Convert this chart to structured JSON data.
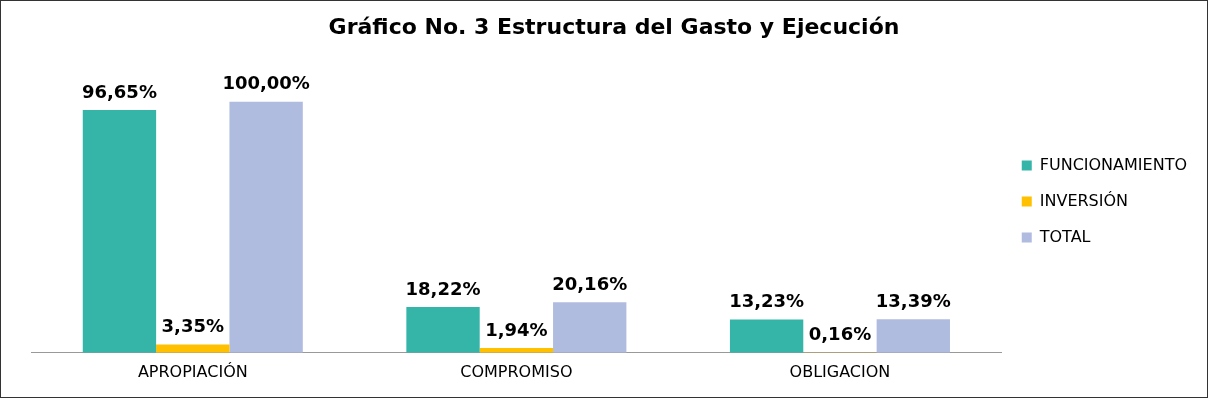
{
  "chart_data": {
    "type": "bar",
    "title": "Gráfico No. 3 Estructura del Gasto y Ejecución",
    "categories": [
      "APROPIACIÓN",
      "COMPROMISO",
      "OBLIGACION"
    ],
    "series": [
      {
        "name": "FUNCIONAMIENTO",
        "color": "#34b5a8",
        "values": [
          96.65,
          18.22,
          13.23
        ],
        "value_labels": [
          "96,65%",
          "18,22%",
          "13,23%"
        ]
      },
      {
        "name": "INVERSIÓN",
        "color": "#ffc000",
        "values": [
          3.35,
          1.94,
          0.16
        ],
        "value_labels": [
          "3,35%",
          "1,94%",
          "0,16%"
        ]
      },
      {
        "name": "TOTAL",
        "color": "#b0bbe0",
        "values": [
          100,
          20.16,
          13.39
        ],
        "value_labels": [
          "100,00%",
          "20,16%",
          "13,39%"
        ]
      }
    ],
    "legend": "right",
    "grid": false
  }
}
